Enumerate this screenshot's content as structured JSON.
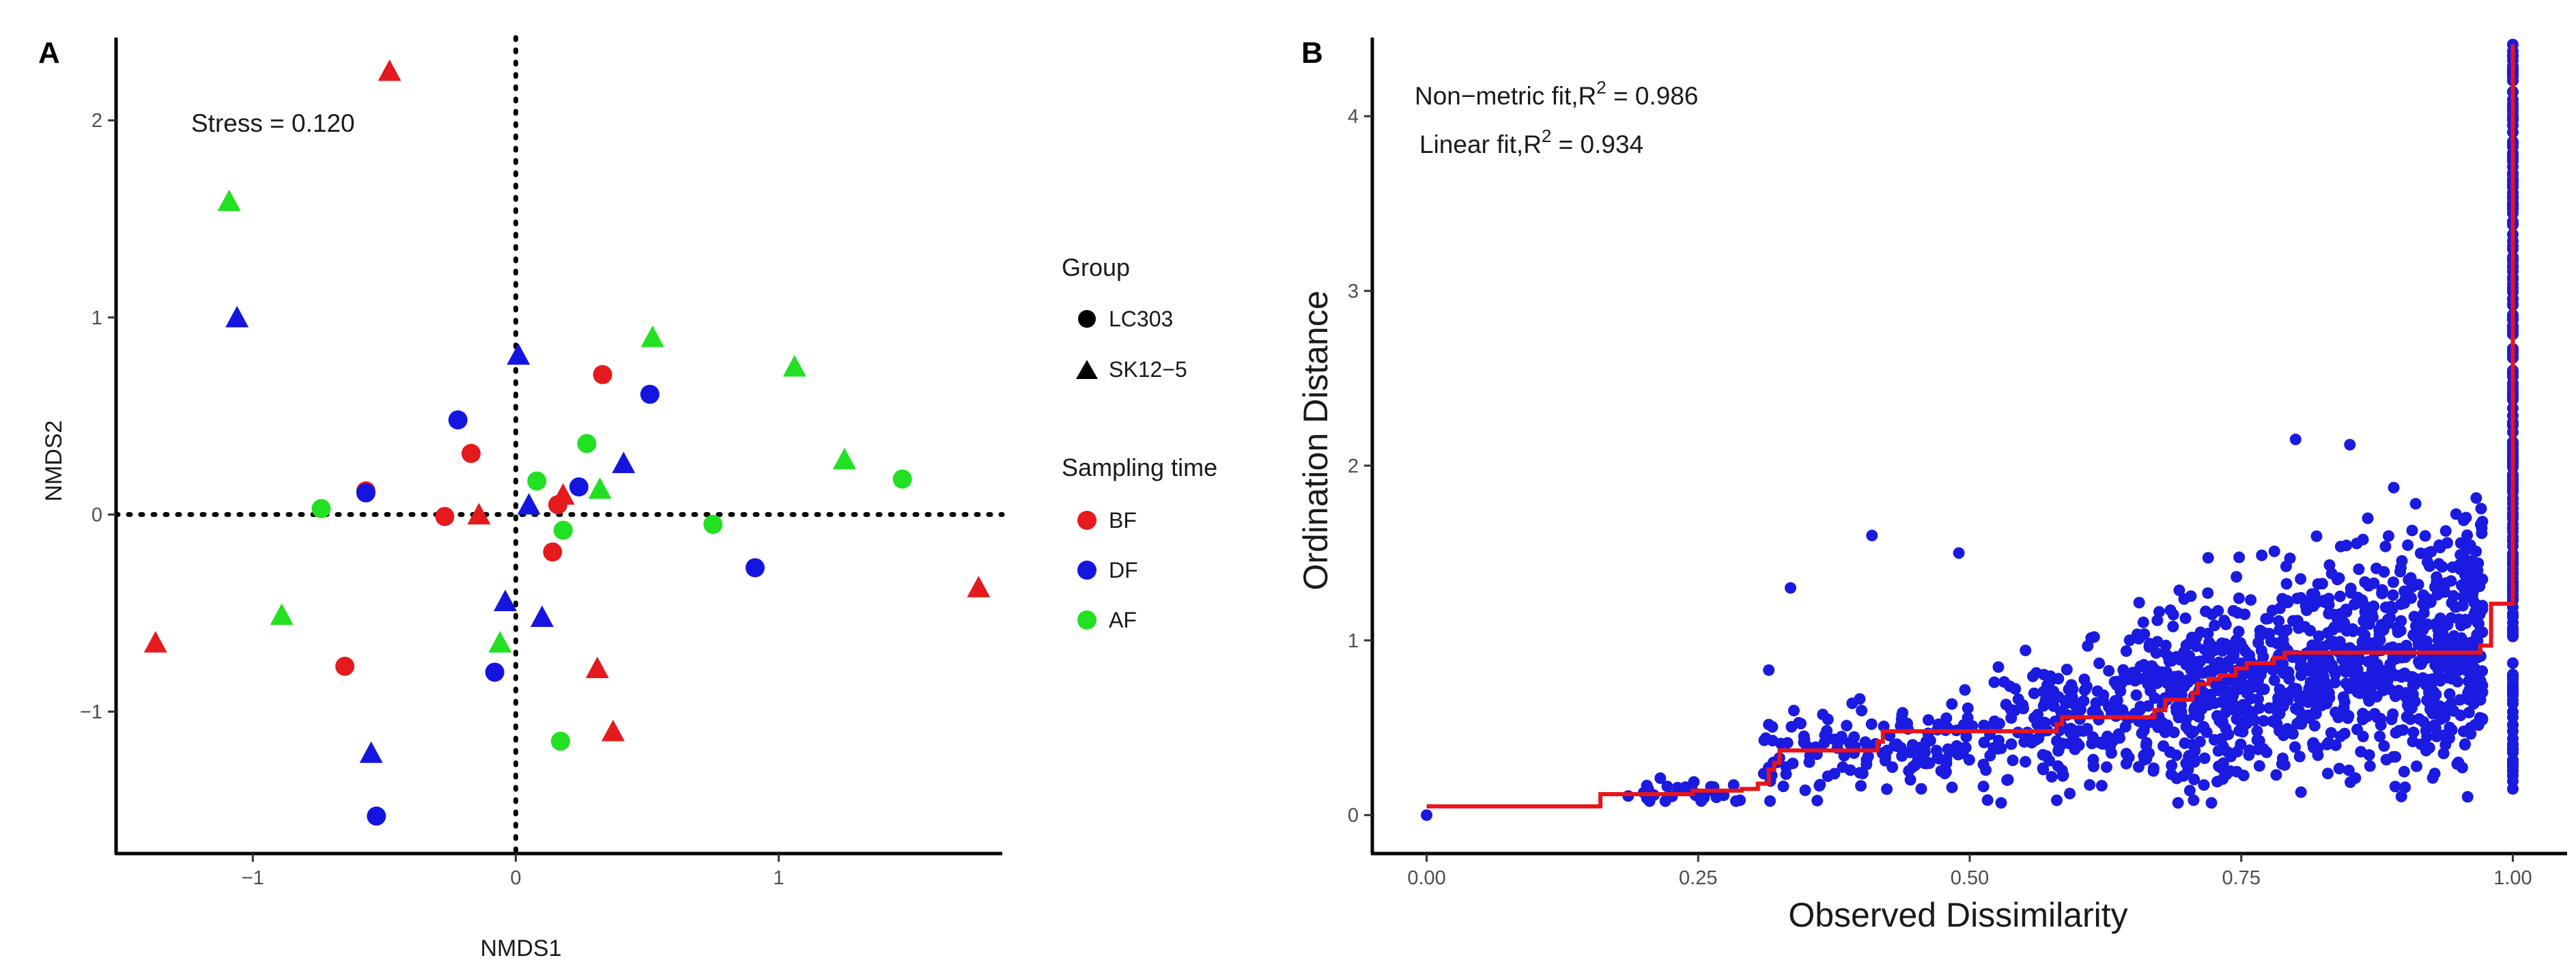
{
  "chart_data": [
    {
      "panel": "A",
      "type": "scatter",
      "annotation": "Stress = 0.120",
      "xlabel": "NMDS1",
      "ylabel": "NMDS2",
      "xlim": [
        -1.52,
        1.85
      ],
      "ylim": [
        -1.72,
        2.42
      ],
      "xticks": [
        -1,
        0,
        1
      ],
      "yticks": [
        -1,
        0,
        1,
        2
      ],
      "reference_lines": {
        "x": 0,
        "y": 0,
        "style": "dotted"
      },
      "grid": false,
      "legend_position": "right",
      "legend_group": {
        "title": "Group",
        "items": [
          {
            "label": "LC303",
            "shape": "circle"
          },
          {
            "label": "SK12−5",
            "shape": "triangle"
          }
        ]
      },
      "legend_time": {
        "title": "Sampling time",
        "items": [
          {
            "label": "BF",
            "color": "#e41a1c"
          },
          {
            "label": "DF",
            "color": "#1515e0"
          },
          {
            "label": "AF",
            "color": "#22e022"
          }
        ]
      },
      "points": [
        {
          "x": -0.48,
          "y": 2.25,
          "group": "SK12-5",
          "time": "BF"
        },
        {
          "x": -1.09,
          "y": 1.59,
          "group": "SK12-5",
          "time": "AF"
        },
        {
          "x": -1.06,
          "y": 1.0,
          "group": "SK12-5",
          "time": "DF"
        },
        {
          "x": -1.37,
          "y": -0.65,
          "group": "SK12-5",
          "time": "BF"
        },
        {
          "x": -0.89,
          "y": -0.51,
          "group": "SK12-5",
          "time": "AF"
        },
        {
          "x": -0.55,
          "y": -1.21,
          "group": "SK12-5",
          "time": "DF"
        },
        {
          "x": -0.14,
          "y": 0.0,
          "group": "SK12-5",
          "time": "BF"
        },
        {
          "x": 0.01,
          "y": 0.81,
          "group": "SK12-5",
          "time": "DF"
        },
        {
          "x": 0.05,
          "y": 0.05,
          "group": "SK12-5",
          "time": "DF"
        },
        {
          "x": -0.04,
          "y": -0.44,
          "group": "SK12-5",
          "time": "DF"
        },
        {
          "x": 0.1,
          "y": -0.52,
          "group": "SK12-5",
          "time": "DF"
        },
        {
          "x": -0.06,
          "y": -0.65,
          "group": "SK12-5",
          "time": "AF"
        },
        {
          "x": 0.18,
          "y": 0.1,
          "group": "SK12-5",
          "time": "BF"
        },
        {
          "x": 0.32,
          "y": 0.13,
          "group": "SK12-5",
          "time": "AF"
        },
        {
          "x": 0.41,
          "y": 0.26,
          "group": "SK12-5",
          "time": "DF"
        },
        {
          "x": 0.52,
          "y": 0.9,
          "group": "SK12-5",
          "time": "AF"
        },
        {
          "x": 0.31,
          "y": -0.78,
          "group": "SK12-5",
          "time": "BF"
        },
        {
          "x": 0.37,
          "y": -1.1,
          "group": "SK12-5",
          "time": "BF"
        },
        {
          "x": 1.06,
          "y": 0.75,
          "group": "SK12-5",
          "time": "AF"
        },
        {
          "x": 1.25,
          "y": 0.28,
          "group": "SK12-5",
          "time": "AF"
        },
        {
          "x": 1.76,
          "y": -0.37,
          "group": "SK12-5",
          "time": "BF"
        },
        {
          "x": -0.57,
          "y": 0.12,
          "group": "LC303",
          "time": "BF"
        },
        {
          "x": -0.57,
          "y": 0.11,
          "group": "LC303",
          "time": "DF"
        },
        {
          "x": -0.74,
          "y": 0.03,
          "group": "LC303",
          "time": "AF"
        },
        {
          "x": -0.65,
          "y": -0.77,
          "group": "LC303",
          "time": "BF"
        },
        {
          "x": -0.53,
          "y": -1.53,
          "group": "LC303",
          "time": "DF"
        },
        {
          "x": -0.22,
          "y": 0.48,
          "group": "LC303",
          "time": "DF"
        },
        {
          "x": -0.17,
          "y": 0.31,
          "group": "LC303",
          "time": "BF"
        },
        {
          "x": -0.27,
          "y": -0.01,
          "group": "LC303",
          "time": "BF"
        },
        {
          "x": -0.08,
          "y": -0.8,
          "group": "LC303",
          "time": "DF"
        },
        {
          "x": 0.08,
          "y": 0.17,
          "group": "LC303",
          "time": "AF"
        },
        {
          "x": 0.16,
          "y": 0.05,
          "group": "LC303",
          "time": "BF"
        },
        {
          "x": 0.18,
          "y": -0.08,
          "group": "LC303",
          "time": "AF"
        },
        {
          "x": 0.14,
          "y": -0.19,
          "group": "LC303",
          "time": "BF"
        },
        {
          "x": 0.24,
          "y": 0.14,
          "group": "LC303",
          "time": "DF"
        },
        {
          "x": 0.27,
          "y": 0.36,
          "group": "LC303",
          "time": "AF"
        },
        {
          "x": 0.33,
          "y": 0.71,
          "group": "LC303",
          "time": "BF"
        },
        {
          "x": 0.51,
          "y": 0.61,
          "group": "LC303",
          "time": "DF"
        },
        {
          "x": 0.17,
          "y": -1.15,
          "group": "LC303",
          "time": "AF"
        },
        {
          "x": 0.75,
          "y": -0.05,
          "group": "LC303",
          "time": "AF"
        },
        {
          "x": 0.91,
          "y": -0.27,
          "group": "LC303",
          "time": "DF"
        },
        {
          "x": 1.47,
          "y": 0.18,
          "group": "LC303",
          "time": "AF"
        }
      ]
    },
    {
      "panel": "B",
      "type": "scatter",
      "annotations": [
        {
          "text": "Non−metric fit,R",
          "sup": "2",
          "after": " = 0.986"
        },
        {
          "text": "Linear fit,R",
          "sup": "2",
          "after": " = 0.934"
        }
      ],
      "xlabel": "Observed Dissimilarity",
      "ylabel": "Ordination Distance",
      "xlim": [
        -0.05,
        1.05
      ],
      "ylim": [
        -0.22,
        4.45
      ],
      "xticks": [
        "0.00",
        "0.25",
        "0.50",
        "0.75",
        "1.00"
      ],
      "yticks": [
        0,
        1,
        2,
        3,
        4
      ],
      "grid": false,
      "point_color": "#1a1ae0",
      "fit_color": "#e8141c",
      "fit_type": "step",
      "fit_step": {
        "x": [
          0,
          0.155,
          0.16,
          0.245,
          0.29,
          0.305,
          0.315,
          0.32,
          0.325,
          0.415,
          0.42,
          0.58,
          0.585,
          0.67,
          0.68,
          0.705,
          0.71,
          0.72,
          0.73,
          0.745,
          0.755,
          0.78,
          0.79,
          0.97,
          0.98,
          1.0,
          1.0
        ],
        "y": [
          0.05,
          0.05,
          0.12,
          0.14,
          0.15,
          0.18,
          0.26,
          0.3,
          0.37,
          0.42,
          0.48,
          0.52,
          0.56,
          0.6,
          0.66,
          0.7,
          0.75,
          0.78,
          0.8,
          0.84,
          0.87,
          0.9,
          0.93,
          0.97,
          1.21,
          1.21,
          4.41
        ]
      },
      "points_labeled_outliers": [
        {
          "x": 0.0,
          "y": 0.0
        },
        {
          "x": 0.335,
          "y": 1.3
        },
        {
          "x": 0.41,
          "y": 1.6
        },
        {
          "x": 0.49,
          "y": 1.5
        },
        {
          "x": 0.315,
          "y": 0.83
        },
        {
          "x": 0.8,
          "y": 2.15
        },
        {
          "x": 0.85,
          "y": 2.12
        },
        {
          "x": 1.0,
          "y": 4.41
        },
        {
          "x": 1.0,
          "y": 0.15
        }
      ],
      "points_note": "Dense cloud of ~1500 pairwise dissimilarities rising from near (0.2, 0.1) to (0.97, 2.1); a vertical column of points at x = 1.00 spans y 0.15 to 4.41."
    }
  ],
  "panel_labels": [
    "A",
    "B"
  ]
}
